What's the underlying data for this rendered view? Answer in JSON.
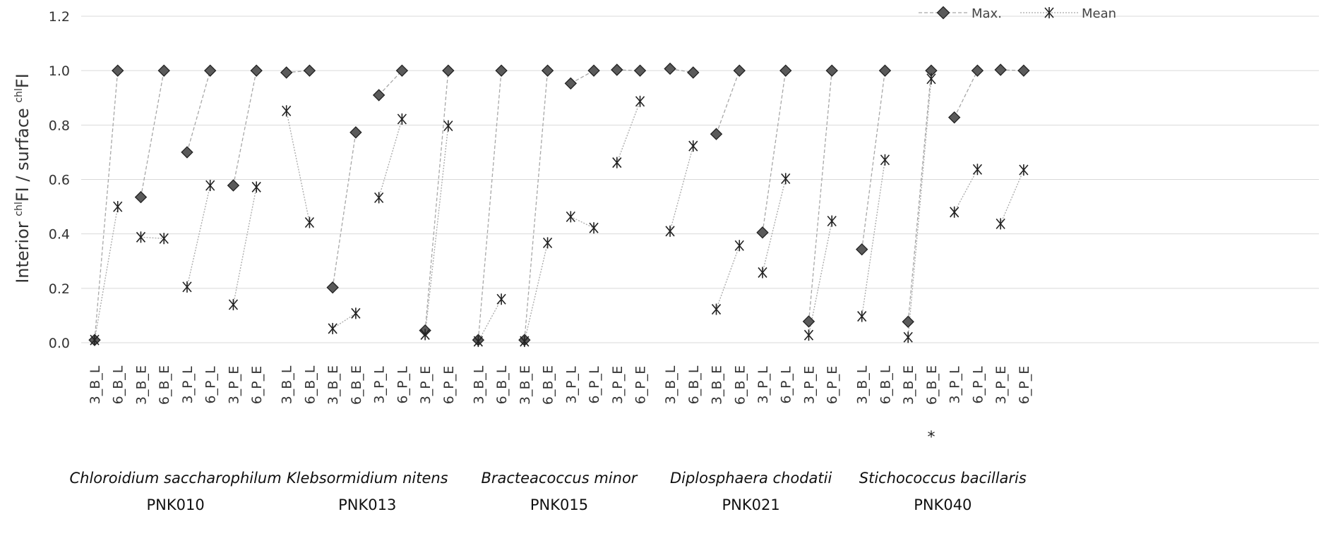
{
  "chart_data": {
    "type": "scatter",
    "ylabel": {
      "prefix": "Interior ",
      "sup1": "chl",
      "mid": "FI / surface ",
      "sup2": "chl",
      "suffix": "FI"
    },
    "ylim": [
      0,
      1.2
    ],
    "yticks": [
      "0.0",
      "0.2",
      "0.4",
      "0.6",
      "0.8",
      "1.0",
      "1.2"
    ],
    "legend": {
      "max_label": "Max.",
      "mean_label": "Mean",
      "position": "top-right"
    },
    "grid": true,
    "series_names": [
      "Max.",
      "Mean"
    ],
    "groups": [
      {
        "name": "Chloroidium saccharophilum",
        "code": "PNK010",
        "categories": [
          "3_B_L",
          "6_B_L",
          "3_B_E",
          "6_B_E",
          "3_P_L",
          "6_P_L",
          "3_P_E",
          "6_P_E"
        ],
        "max": [
          0.01,
          1.0,
          0.535,
          1.0,
          0.7,
          1.0,
          0.578,
          1.0
        ],
        "mean": [
          0.01,
          0.5,
          0.388,
          0.383,
          0.205,
          0.578,
          0.14,
          0.572
        ]
      },
      {
        "name": "Klebsormidium nitens",
        "code": "PNK013",
        "categories": [
          "3_B_L",
          "6_B_L",
          "3_B_E",
          "6_B_E",
          "3_P_L",
          "6_P_L",
          "3_P_E",
          "6_P_E"
        ],
        "max": [
          0.993,
          1.0,
          0.203,
          0.773,
          0.91,
          1.0,
          0.045,
          1.0
        ],
        "mean": [
          0.852,
          0.442,
          0.052,
          0.108,
          0.533,
          0.822,
          0.03,
          0.797
        ]
      },
      {
        "name": "Bracteacoccus minor",
        "code": "PNK015",
        "categories": [
          "3_B_L",
          "6_B_L",
          "3_B_E",
          "6_B_E",
          "3_P_L",
          "6_P_L",
          "3_P_E",
          "6_P_E"
        ],
        "max": [
          0.01,
          1.0,
          0.01,
          1.0,
          0.953,
          1.0,
          1.003,
          1.0
        ],
        "mean": [
          0.005,
          0.16,
          0.005,
          0.367,
          0.463,
          0.422,
          0.662,
          0.887
        ]
      },
      {
        "name": "Diplosphaera chodatii",
        "code": "PNK021",
        "categories": [
          "3_B_L",
          "6_B_L",
          "3_B_E",
          "6_B_E",
          "3_P_L",
          "6_P_L",
          "3_P_E",
          "6_P_E"
        ],
        "max": [
          1.007,
          0.993,
          0.767,
          1.0,
          0.405,
          1.0,
          0.078,
          1.0
        ],
        "mean": [
          0.41,
          0.723,
          0.123,
          0.357,
          0.258,
          0.603,
          0.028,
          0.447
        ]
      },
      {
        "name": "Stichococcus bacillaris",
        "code": "PNK040",
        "categories": [
          "3_B_L",
          "6_B_L",
          "3_B_E",
          "6_B_E",
          "3_P_L",
          "6_P_L",
          "3_P_E",
          "6_P_E"
        ],
        "max": [
          0.343,
          1.0,
          0.077,
          1.0,
          0.828,
          1.0,
          1.003,
          1.0
        ],
        "mean": [
          0.097,
          0.672,
          0.02,
          0.97,
          0.48,
          0.637,
          0.437,
          0.635
        ],
        "note_category": "6_B_E",
        "note": "*"
      }
    ]
  }
}
